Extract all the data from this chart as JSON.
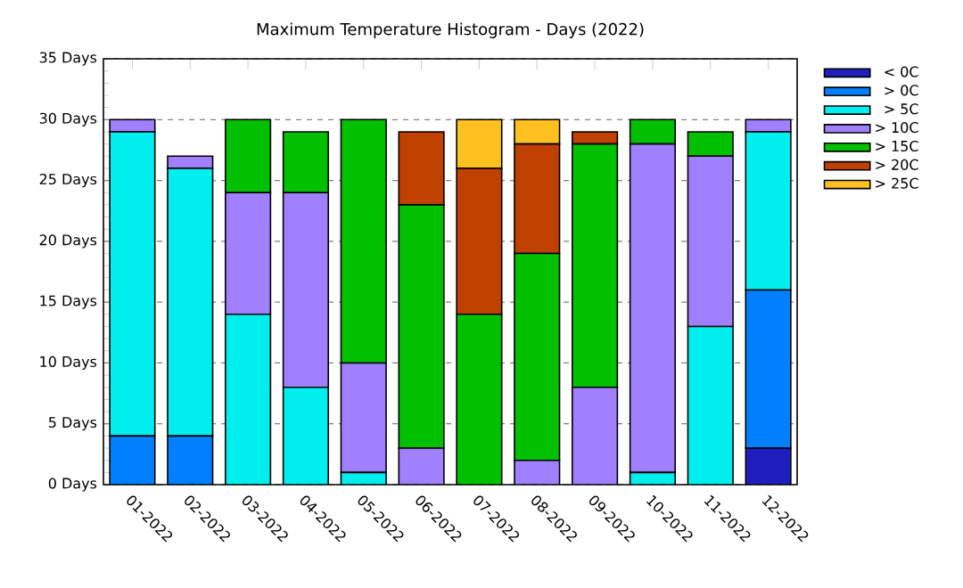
{
  "chart_data": {
    "type": "bar",
    "stacked": true,
    "title": "Maximum Temperature Histogram - Days (2022)",
    "categories": [
      "01-2022",
      "02-2022",
      "03-2022",
      "04-2022",
      "05-2022",
      "06-2022",
      "07-2022",
      "08-2022",
      "09-2022",
      "10-2022",
      "11-2022",
      "12-2022"
    ],
    "series": [
      {
        "name": "< 0C",
        "color": "#1f1fbf",
        "values": [
          null,
          null,
          null,
          null,
          null,
          null,
          null,
          null,
          null,
          null,
          null,
          3
        ]
      },
      {
        "name": "> 0C",
        "color": "#0080ff",
        "values": [
          4,
          4,
          null,
          null,
          null,
          null,
          null,
          null,
          null,
          null,
          null,
          13
        ]
      },
      {
        "name": "> 5C",
        "color": "#00eeee",
        "values": [
          25,
          22,
          14,
          8,
          1,
          null,
          null,
          null,
          null,
          1,
          13,
          13
        ]
      },
      {
        "name": "> 10C",
        "color": "#a080ff",
        "values": [
          1,
          1,
          10,
          16,
          9,
          3,
          null,
          2,
          8,
          27,
          14,
          1
        ]
      },
      {
        "name": "> 15C",
        "color": "#00c000",
        "values": [
          null,
          null,
          6,
          5,
          20,
          20,
          14,
          17,
          20,
          2,
          2,
          null
        ]
      },
      {
        "name": "> 20C",
        "color": "#c04000",
        "values": [
          null,
          null,
          null,
          null,
          null,
          6,
          12,
          9,
          1,
          null,
          null,
          null
        ]
      },
      {
        "name": "> 25C",
        "color": "#ffc020",
        "values": [
          null,
          null,
          null,
          null,
          null,
          null,
          4,
          2,
          null,
          null,
          null,
          null
        ]
      }
    ],
    "ylim": [
      0,
      35
    ],
    "yticks": [
      {
        "value": 0,
        "label": "0 Days"
      },
      {
        "value": 5,
        "label": "5 Days"
      },
      {
        "value": 10,
        "label": "10 Days"
      },
      {
        "value": 15,
        "label": "15 Days"
      },
      {
        "value": 20,
        "label": "20 Days"
      },
      {
        "value": 25,
        "label": "25 Days"
      },
      {
        "value": 30,
        "label": "30 Days"
      },
      {
        "value": 35,
        "label": "35 Days"
      }
    ],
    "grid": "y",
    "legend": "right"
  }
}
